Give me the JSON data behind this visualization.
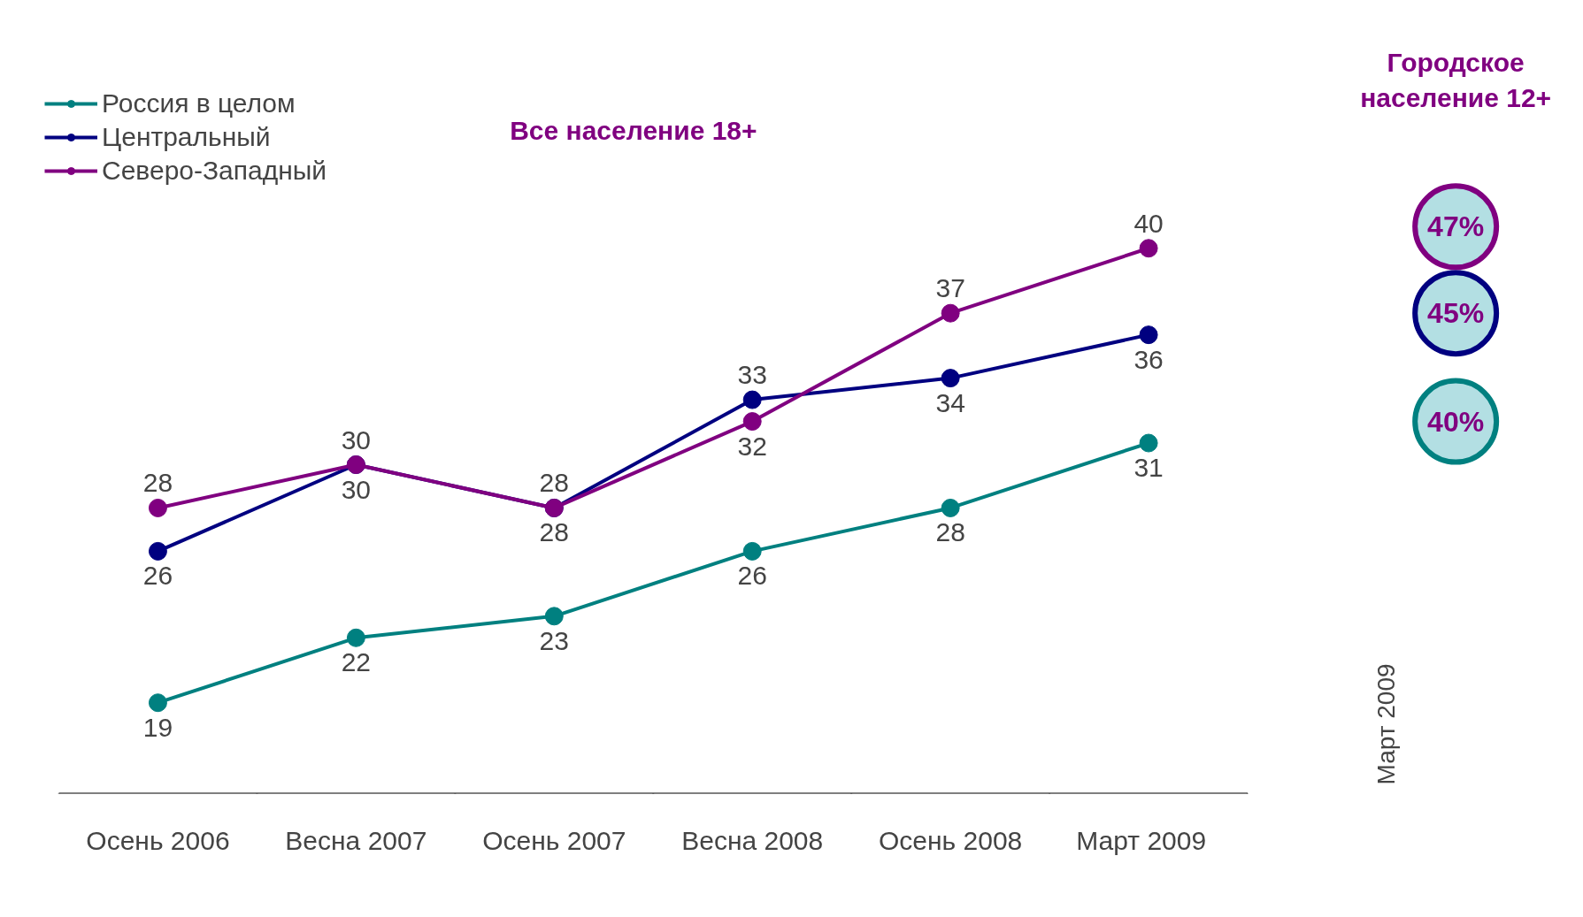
{
  "chart_data": {
    "type": "line",
    "subtitle": "Все население 18+",
    "categories": [
      "Осень 2006",
      "Весна 2007",
      "Осень 2007",
      "Весна 2008",
      "Осень 2008",
      "Март   2009"
    ],
    "series": [
      {
        "name": "Россия в целом",
        "color": "#008080",
        "values": [
          19,
          22,
          23,
          26,
          28,
          31
        ]
      },
      {
        "name": "Центральный",
        "color": "#000080",
        "values": [
          26,
          30,
          28,
          33,
          34,
          36
        ]
      },
      {
        "name": "Северо-Западный",
        "color": "#800080",
        "values": [
          28,
          30,
          28,
          32,
          37,
          40
        ]
      }
    ],
    "data_labels": true,
    "marker": "circle",
    "line_style": "solid",
    "legend": "top left",
    "grid": false,
    "annotations": [
      "Городское население 12+",
      "40%",
      "45%",
      "47%",
      "Март 2009"
    ]
  }
}
